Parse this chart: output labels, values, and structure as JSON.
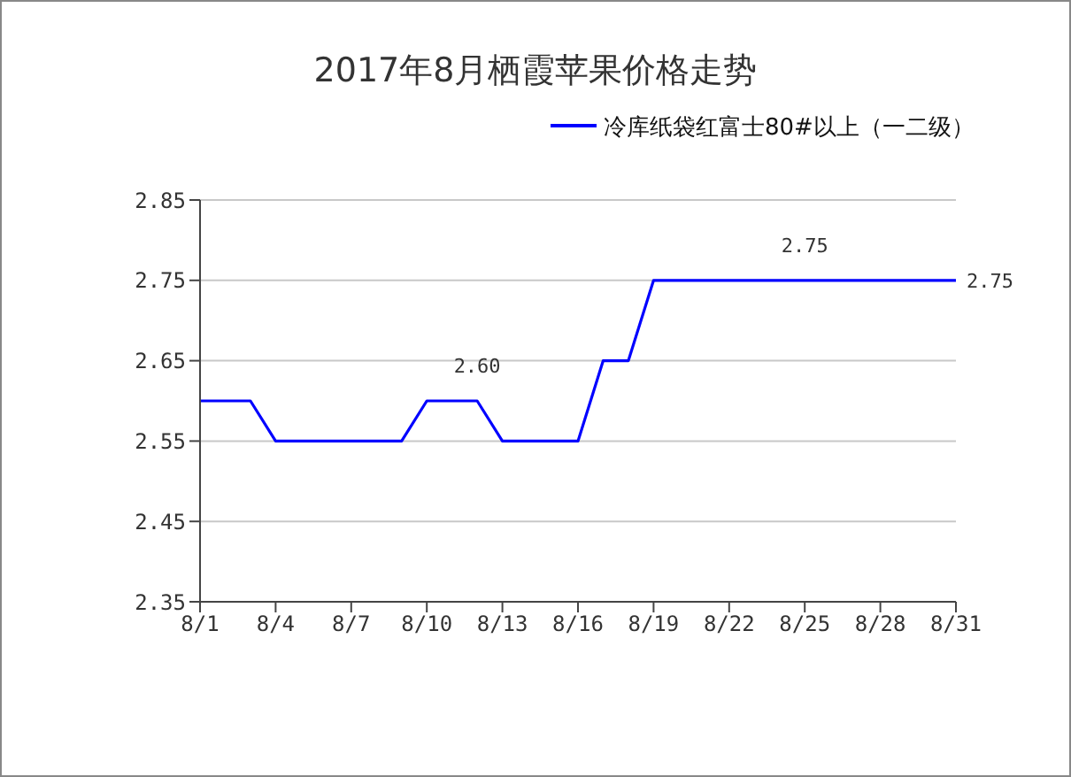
{
  "chart_data": {
    "type": "line",
    "title": "2017年8月栖霞苹果价格走势",
    "categories": [
      "8/1",
      null,
      null,
      "8/4",
      null,
      null,
      "8/7",
      null,
      null,
      "8/10",
      null,
      null,
      "8/13",
      null,
      null,
      "8/16",
      null,
      null,
      "8/19",
      null,
      null,
      "8/22",
      null,
      null,
      "8/25",
      null,
      null,
      "8/28",
      null,
      null,
      "8/31"
    ],
    "series": [
      {
        "name": "冷库纸袋红富士80#以上（一二级）",
        "color": "#0000ff",
        "values": [
          2.6,
          2.6,
          2.6,
          2.55,
          2.55,
          2.55,
          2.55,
          2.55,
          2.55,
          2.6,
          2.6,
          2.6,
          2.55,
          2.55,
          2.55,
          2.55,
          2.65,
          2.65,
          2.75,
          2.75,
          2.75,
          2.75,
          2.75,
          2.75,
          2.75,
          2.75,
          2.75,
          2.75,
          2.75,
          2.75,
          2.75
        ],
        "value_labels": [
          null,
          null,
          null,
          null,
          null,
          null,
          null,
          null,
          null,
          null,
          null,
          "2.60",
          null,
          null,
          null,
          null,
          null,
          null,
          null,
          null,
          null,
          null,
          null,
          null,
          "2.75",
          null,
          null,
          null,
          null,
          null,
          "2.75"
        ]
      }
    ],
    "ylim": [
      2.35,
      2.85
    ],
    "yticks": [
      2.35,
      2.45,
      2.55,
      2.65,
      2.75,
      2.85
    ],
    "grid": "y",
    "legend": "top right",
    "marker": "none",
    "line_style": "solid"
  }
}
